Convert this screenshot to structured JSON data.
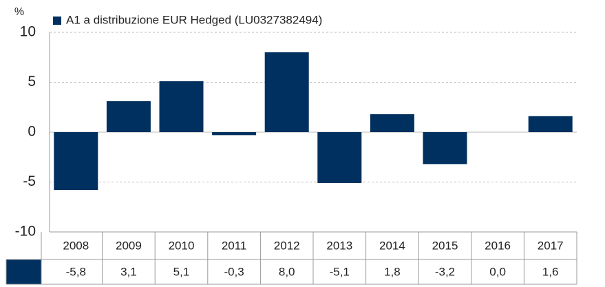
{
  "chart_data": {
    "type": "bar",
    "y_label": "%",
    "series": [
      {
        "name": "A1 a distribuzione EUR Hedged (LU0327382494)",
        "color": "#00305f",
        "values": [
          -5.8,
          3.1,
          5.1,
          -0.3,
          8.0,
          -5.1,
          1.8,
          -3.2,
          0.0,
          1.6
        ],
        "value_labels": [
          "-5,8",
          "3,1",
          "5,1",
          "-0,3",
          "8,0",
          "-5,1",
          "1,8",
          "-3,2",
          "0,0",
          "1,6"
        ]
      }
    ],
    "categories": [
      "2008",
      "2009",
      "2010",
      "2011",
      "2012",
      "2013",
      "2014",
      "2015",
      "2016",
      "2017"
    ],
    "ylim": [
      -10,
      10
    ],
    "yticks": [
      10,
      5,
      0,
      -5,
      -10
    ],
    "grid": true
  }
}
